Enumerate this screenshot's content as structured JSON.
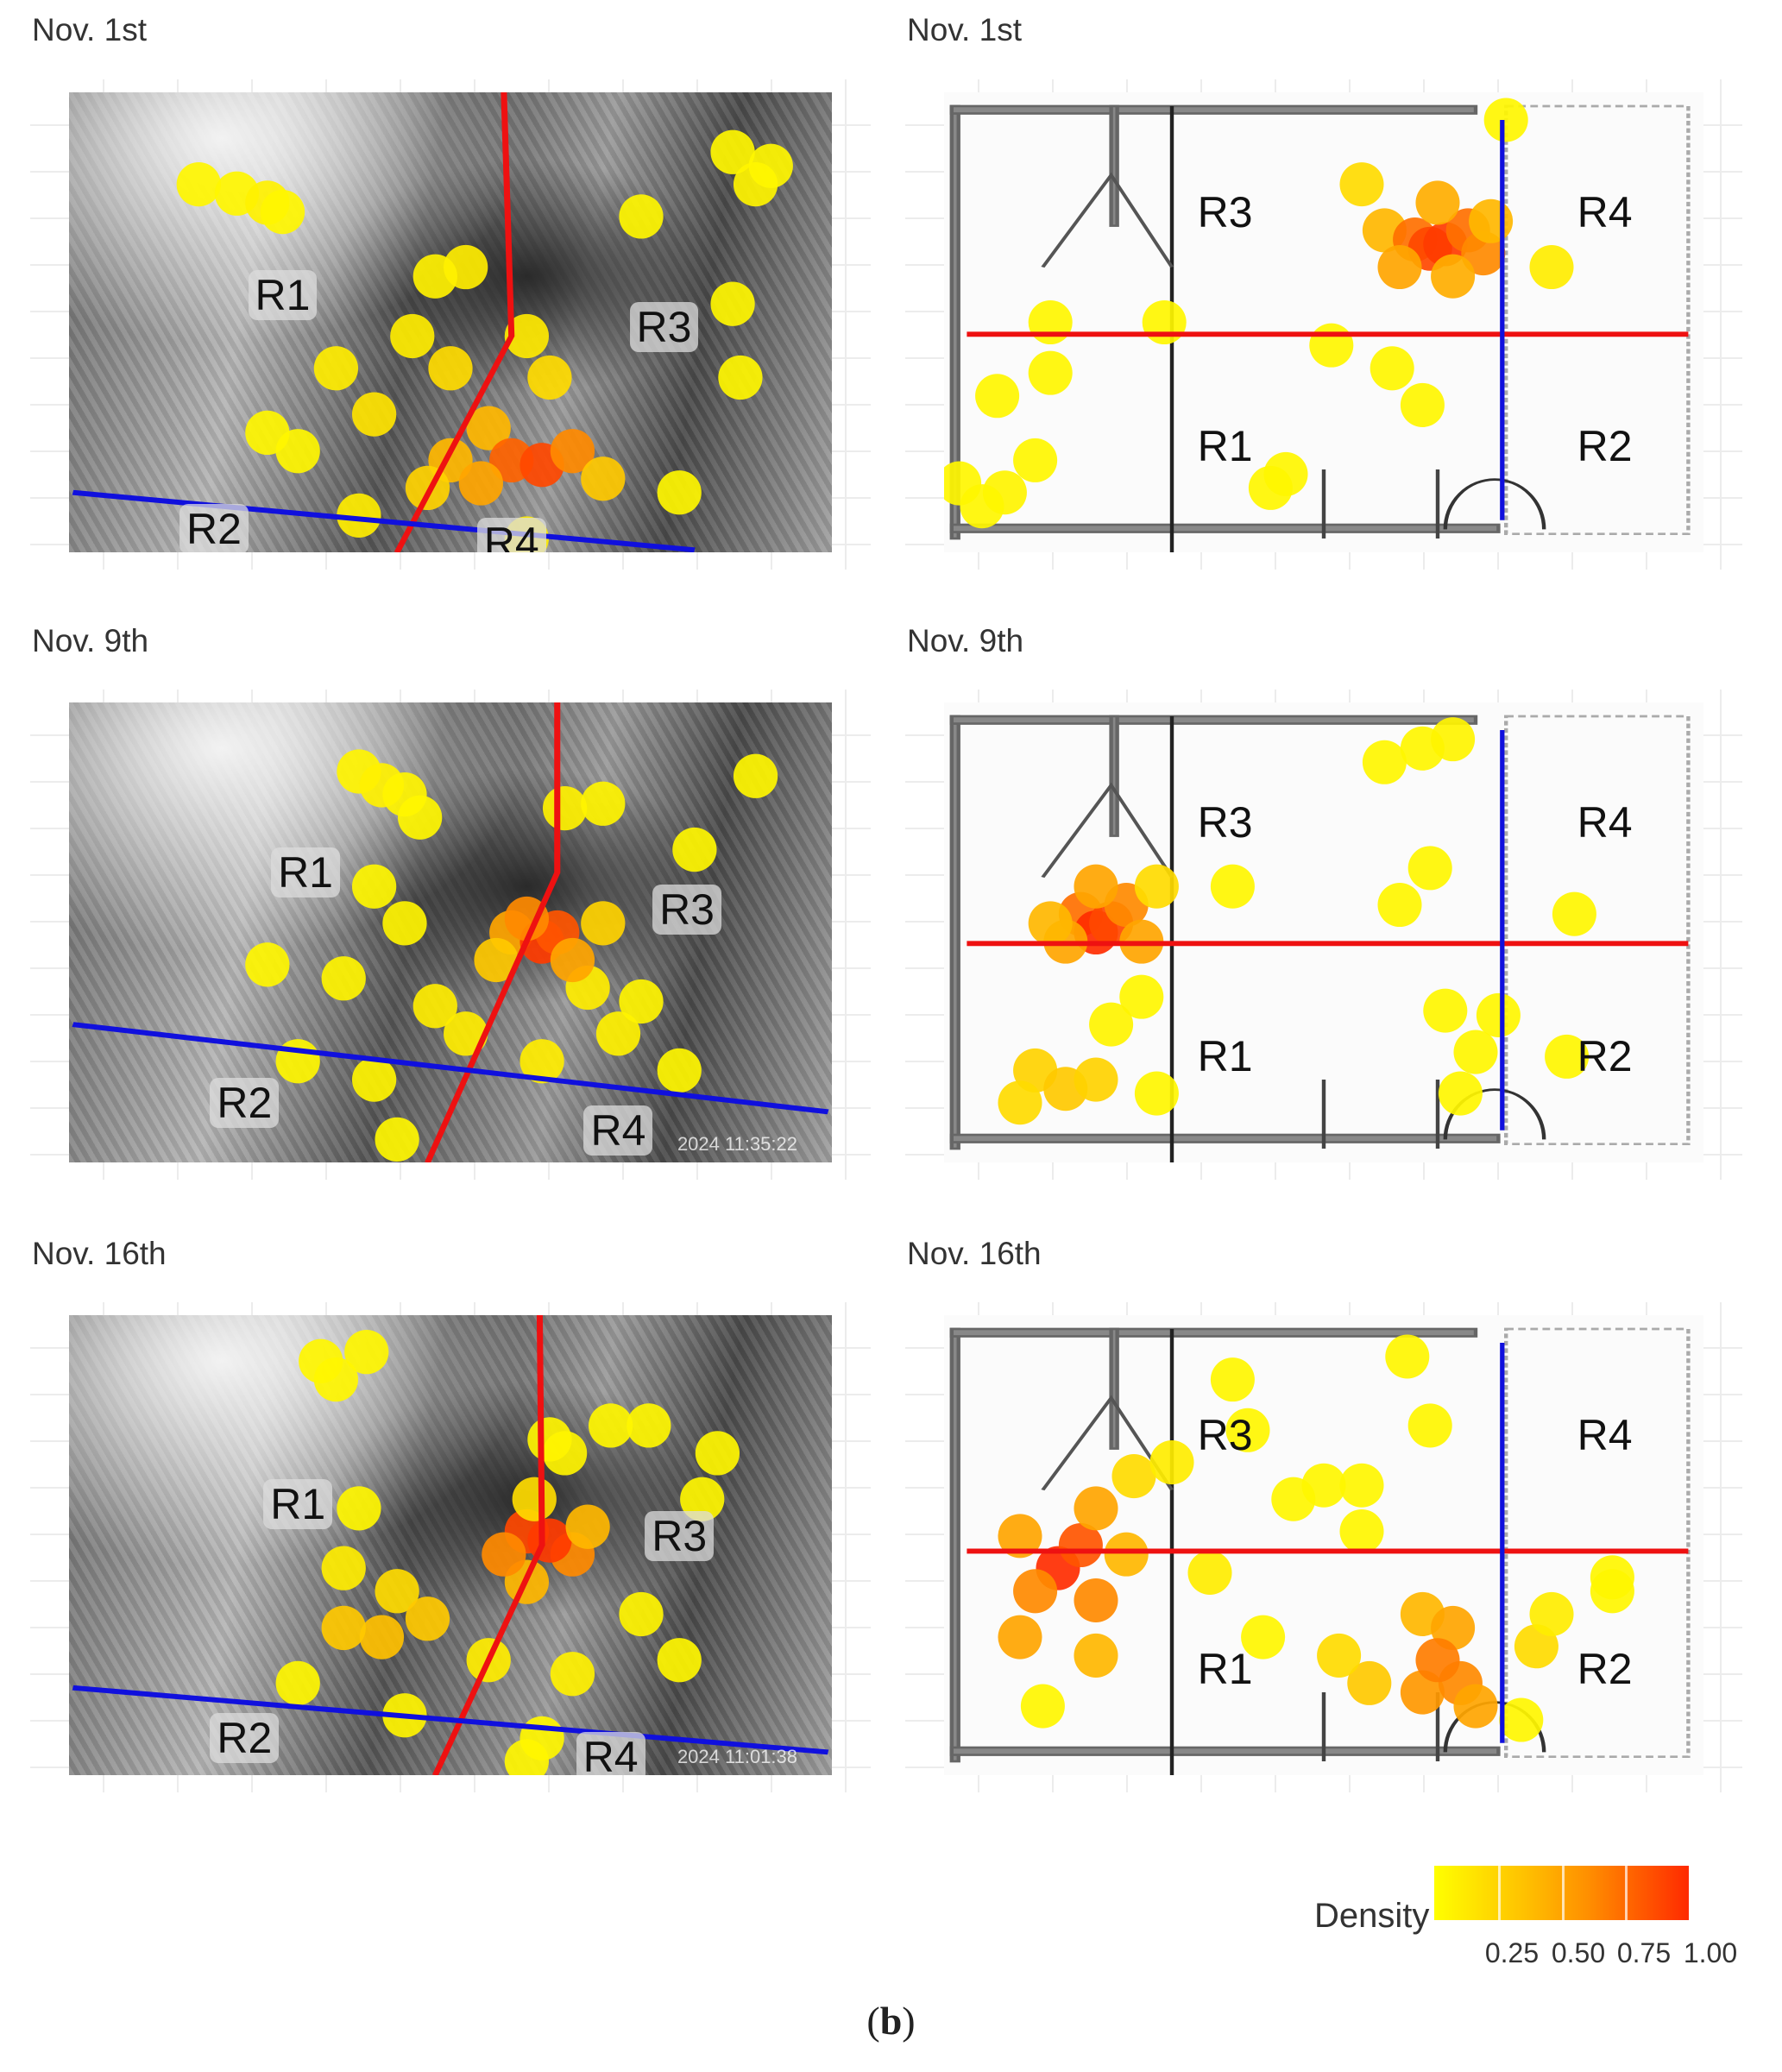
{
  "caption": {
    "open": "(",
    "letter": "b",
    "close": ")"
  },
  "chart_data": {
    "type": "heatmap",
    "title": "",
    "axis_units": "panel coordinates 0-100 (x left→right, y top→bottom)",
    "colors": {
      "low": "#ffff00",
      "mid": "#ffa500",
      "high": "#ff2000",
      "split_red": "#ee1111",
      "split_blue": "#1010dd"
    },
    "legend": {
      "title": "Density",
      "ticks": [
        "0.25",
        "0.50",
        "0.75",
        "1.00"
      ],
      "range": [
        0,
        1
      ],
      "placement": "bottom-right"
    },
    "region_labels": [
      "R1",
      "R2",
      "R3",
      "R4"
    ],
    "panels": [
      {
        "title": "Nov. 1st",
        "view": "camera",
        "stamp": "",
        "points": [
          [
            17,
            20,
            0.05
          ],
          [
            22,
            22,
            0.05
          ],
          [
            26,
            24,
            0.08
          ],
          [
            28,
            26,
            0.05
          ],
          [
            87,
            13,
            0.05
          ],
          [
            90,
            20,
            0.06
          ],
          [
            92,
            16,
            0.05
          ],
          [
            75,
            27,
            0.05
          ],
          [
            52,
            38,
            0.1
          ],
          [
            48,
            40,
            0.08
          ],
          [
            60,
            53,
            0.12
          ],
          [
            45,
            53,
            0.1
          ],
          [
            35,
            60,
            0.1
          ],
          [
            50,
            60,
            0.2
          ],
          [
            63,
            62,
            0.2
          ],
          [
            87,
            46,
            0.05
          ],
          [
            88,
            62,
            0.05
          ],
          [
            26,
            74,
            0.05
          ],
          [
            40,
            70,
            0.15
          ],
          [
            55,
            73,
            0.4
          ],
          [
            80,
            87,
            0.05
          ],
          [
            60,
            97,
            0.1
          ],
          [
            50,
            80,
            0.4
          ],
          [
            58,
            80,
            0.75
          ],
          [
            62,
            81,
            0.85
          ],
          [
            66,
            78,
            0.6
          ],
          [
            54,
            85,
            0.5
          ],
          [
            70,
            84,
            0.3
          ],
          [
            47,
            86,
            0.25
          ],
          [
            30,
            78,
            0.05
          ],
          [
            38,
            92,
            0.1
          ]
        ]
      },
      {
        "title": "Nov. 1st",
        "view": "floorplan",
        "points": [
          [
            74,
            6,
            0.05
          ],
          [
            55,
            20,
            0.2
          ],
          [
            58,
            30,
            0.4
          ],
          [
            62,
            32,
            0.7
          ],
          [
            64,
            34,
            0.85
          ],
          [
            66,
            33,
            0.9
          ],
          [
            69,
            30,
            0.7
          ],
          [
            71,
            35,
            0.6
          ],
          [
            60,
            38,
            0.5
          ],
          [
            67,
            40,
            0.45
          ],
          [
            72,
            28,
            0.4
          ],
          [
            65,
            24,
            0.45
          ],
          [
            80,
            38,
            0.1
          ],
          [
            51,
            55,
            0.05
          ],
          [
            59,
            60,
            0.05
          ],
          [
            63,
            68,
            0.05
          ],
          [
            14,
            50,
            0.05
          ],
          [
            29,
            50,
            0.05
          ],
          [
            7,
            66,
            0.05
          ],
          [
            14,
            61,
            0.05
          ],
          [
            2,
            85,
            0.05
          ],
          [
            8,
            87,
            0.06
          ],
          [
            12,
            80,
            0.05
          ],
          [
            5,
            90,
            0.05
          ],
          [
            43,
            86,
            0.05
          ],
          [
            45,
            83,
            0.05
          ]
        ]
      },
      {
        "title": "Nov. 9th",
        "view": "camera",
        "stamp": "2024  11:35:22",
        "points": [
          [
            38,
            15,
            0.06
          ],
          [
            41,
            18,
            0.08
          ],
          [
            44,
            20,
            0.06
          ],
          [
            46,
            25,
            0.05
          ],
          [
            65,
            23,
            0.08
          ],
          [
            70,
            22,
            0.06
          ],
          [
            82,
            32,
            0.05
          ],
          [
            90,
            16,
            0.05
          ],
          [
            40,
            40,
            0.05
          ],
          [
            44,
            48,
            0.06
          ],
          [
            26,
            57,
            0.05
          ],
          [
            36,
            60,
            0.06
          ],
          [
            48,
            66,
            0.1
          ],
          [
            68,
            62,
            0.1
          ],
          [
            72,
            72,
            0.08
          ],
          [
            62,
            78,
            0.1
          ],
          [
            40,
            82,
            0.06
          ],
          [
            43,
            95,
            0.05
          ],
          [
            75,
            65,
            0.06
          ],
          [
            58,
            50,
            0.5
          ],
          [
            62,
            52,
            0.9
          ],
          [
            64,
            50,
            0.8
          ],
          [
            60,
            47,
            0.6
          ],
          [
            66,
            56,
            0.5
          ],
          [
            56,
            56,
            0.3
          ],
          [
            70,
            48,
            0.25
          ],
          [
            30,
            78,
            0.05
          ],
          [
            52,
            72,
            0.1
          ],
          [
            80,
            80,
            0.05
          ]
        ]
      },
      {
        "title": "Nov. 9th",
        "view": "floorplan",
        "points": [
          [
            63,
            10,
            0.05
          ],
          [
            67,
            8,
            0.06
          ],
          [
            58,
            13,
            0.05
          ],
          [
            64,
            36,
            0.05
          ],
          [
            60,
            44,
            0.05
          ],
          [
            38,
            40,
            0.05
          ],
          [
            83,
            46,
            0.05
          ],
          [
            18,
            46,
            0.7
          ],
          [
            20,
            50,
            0.95
          ],
          [
            22,
            48,
            0.85
          ],
          [
            24,
            44,
            0.6
          ],
          [
            16,
            52,
            0.5
          ],
          [
            26,
            52,
            0.5
          ],
          [
            20,
            40,
            0.5
          ],
          [
            28,
            40,
            0.2
          ],
          [
            14,
            48,
            0.4
          ],
          [
            26,
            64,
            0.05
          ],
          [
            22,
            70,
            0.06
          ],
          [
            12,
            80,
            0.25
          ],
          [
            16,
            84,
            0.3
          ],
          [
            20,
            82,
            0.25
          ],
          [
            10,
            87,
            0.2
          ],
          [
            28,
            85,
            0.05
          ],
          [
            66,
            67,
            0.05
          ],
          [
            73,
            68,
            0.05
          ],
          [
            70,
            76,
            0.05
          ],
          [
            68,
            85,
            0.05
          ],
          [
            82,
            77,
            0.05
          ]
        ]
      },
      {
        "title": "Nov. 16th",
        "view": "camera",
        "stamp": "2024  11:01:38",
        "points": [
          [
            33,
            10,
            0.05
          ],
          [
            35,
            14,
            0.05
          ],
          [
            39,
            8,
            0.05
          ],
          [
            63,
            27,
            0.06
          ],
          [
            65,
            30,
            0.06
          ],
          [
            71,
            24,
            0.05
          ],
          [
            76,
            24,
            0.05
          ],
          [
            85,
            30,
            0.05
          ],
          [
            83,
            40,
            0.05
          ],
          [
            38,
            42,
            0.05
          ],
          [
            36,
            55,
            0.1
          ],
          [
            43,
            60,
            0.2
          ],
          [
            41,
            70,
            0.35
          ],
          [
            47,
            66,
            0.3
          ],
          [
            36,
            68,
            0.3
          ],
          [
            30,
            80,
            0.05
          ],
          [
            44,
            87,
            0.06
          ],
          [
            55,
            75,
            0.1
          ],
          [
            66,
            78,
            0.08
          ],
          [
            75,
            65,
            0.06
          ],
          [
            80,
            75,
            0.05
          ],
          [
            60,
            58,
            0.4
          ],
          [
            66,
            52,
            0.6
          ],
          [
            60,
            47,
            0.85
          ],
          [
            63,
            49,
            0.9
          ],
          [
            57,
            52,
            0.6
          ],
          [
            68,
            46,
            0.4
          ],
          [
            61,
            40,
            0.2
          ],
          [
            60,
            97,
            0.05
          ],
          [
            62,
            92,
            0.05
          ]
        ]
      },
      {
        "title": "Nov. 16th",
        "view": "floorplan",
        "points": [
          [
            15,
            55,
            0.95
          ],
          [
            18,
            50,
            0.8
          ],
          [
            12,
            60,
            0.6
          ],
          [
            20,
            62,
            0.6
          ],
          [
            20,
            42,
            0.5
          ],
          [
            24,
            52,
            0.4
          ],
          [
            10,
            70,
            0.5
          ],
          [
            20,
            74,
            0.4
          ],
          [
            10,
            48,
            0.5
          ],
          [
            25,
            35,
            0.2
          ],
          [
            30,
            32,
            0.1
          ],
          [
            35,
            56,
            0.1
          ],
          [
            13,
            85,
            0.05
          ],
          [
            38,
            14,
            0.05
          ],
          [
            40,
            25,
            0.05
          ],
          [
            61,
            9,
            0.05
          ],
          [
            64,
            24,
            0.05
          ],
          [
            46,
            40,
            0.05
          ],
          [
            50,
            37,
            0.05
          ],
          [
            55,
            37,
            0.05
          ],
          [
            55,
            47,
            0.05
          ],
          [
            63,
            65,
            0.4
          ],
          [
            67,
            68,
            0.5
          ],
          [
            63,
            82,
            0.55
          ],
          [
            68,
            80,
            0.6
          ],
          [
            65,
            75,
            0.65
          ],
          [
            56,
            80,
            0.3
          ],
          [
            52,
            74,
            0.2
          ],
          [
            78,
            72,
            0.2
          ],
          [
            80,
            65,
            0.1
          ],
          [
            88,
            60,
            0.05
          ],
          [
            88,
            57,
            0.05
          ],
          [
            76,
            88,
            0.05
          ],
          [
            42,
            70,
            0.05
          ],
          [
            70,
            85,
            0.5
          ]
        ]
      }
    ]
  }
}
